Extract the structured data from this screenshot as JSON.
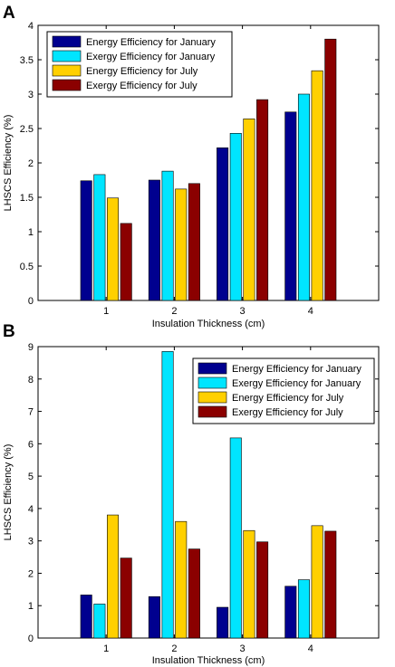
{
  "chart_data": [
    {
      "panel": "A",
      "type": "bar",
      "categories": [
        "1",
        "2",
        "3",
        "4"
      ],
      "series": [
        {
          "name": "Energy Efficiency for January",
          "color": "#00008f",
          "values": [
            1.74,
            1.75,
            2.22,
            2.74
          ]
        },
        {
          "name": "Exergy Efficiency for January",
          "color": "#00e5ff",
          "values": [
            1.83,
            1.88,
            2.43,
            3.0
          ]
        },
        {
          "name": "Energy Efficiency for July",
          "color": "#ffd000",
          "values": [
            1.49,
            1.62,
            2.64,
            3.34
          ]
        },
        {
          "name": "Exergy Efficiency for July",
          "color": "#8b0000",
          "values": [
            1.12,
            1.7,
            2.92,
            3.8
          ]
        }
      ],
      "xlabel": "Insulation Thickness (cm)",
      "ylabel": "LHSCS Efficiency (%)",
      "ylim": [
        0,
        4
      ],
      "yticks": [
        "0",
        "0.5",
        "1",
        "1.5",
        "2",
        "2.5",
        "3",
        "3.5",
        "4"
      ],
      "legend": "top-left",
      "grid": false
    },
    {
      "panel": "B",
      "type": "bar",
      "categories": [
        "1",
        "2",
        "3",
        "4"
      ],
      "series": [
        {
          "name": "Energy Efficiency for January",
          "color": "#00008f",
          "values": [
            1.33,
            1.28,
            0.95,
            1.6
          ]
        },
        {
          "name": "Exergy Efficiency for January",
          "color": "#00e5ff",
          "values": [
            1.05,
            8.85,
            6.18,
            1.8
          ]
        },
        {
          "name": "Energy Efficiency for July",
          "color": "#ffd000",
          "values": [
            3.8,
            3.6,
            3.32,
            3.47
          ]
        },
        {
          "name": "Exergy Efficiency for July",
          "color": "#8b0000",
          "values": [
            2.47,
            2.75,
            2.97,
            3.3
          ]
        }
      ],
      "xlabel": "Insulation Thickness (cm)",
      "ylabel": "LHSCS Efficiency (%)",
      "ylim": [
        0,
        9
      ],
      "yticks": [
        "0",
        "1",
        "2",
        "3",
        "4",
        "5",
        "6",
        "7",
        "8",
        "9"
      ],
      "legend": "top-right",
      "grid": false
    }
  ]
}
